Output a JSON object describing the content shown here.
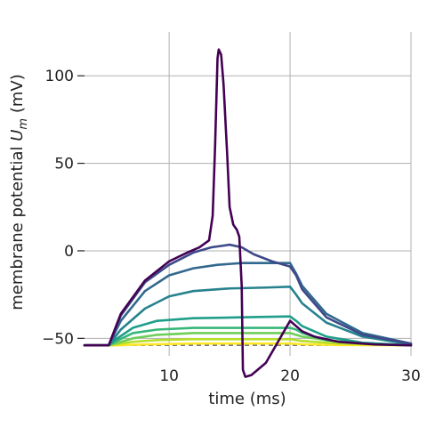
{
  "chart_data": {
    "type": "line",
    "xlabel": "time (ms)",
    "ylabel_main": "membrane potential ",
    "ylabel_symbol": "U",
    "ylabel_sub": "m",
    "ylabel_unit": " (mV)",
    "xlim": [
      3,
      30
    ],
    "ylim": [
      -60,
      125
    ],
    "xticks": [
      10,
      20,
      30
    ],
    "yticks": [
      -50,
      0,
      50,
      100
    ],
    "grid": true,
    "reference_line": {
      "y": -54,
      "color": "#777777",
      "style": "dashed"
    },
    "series": [
      {
        "color": "#fde725",
        "points": [
          [
            3,
            -54
          ],
          [
            5,
            -54
          ],
          [
            5.5,
            -54
          ],
          [
            8,
            -53.5
          ],
          [
            12,
            -53
          ],
          [
            16,
            -53
          ],
          [
            20,
            -53
          ],
          [
            21,
            -53.4
          ],
          [
            24,
            -53.8
          ],
          [
            30,
            -54
          ]
        ]
      },
      {
        "color": "#b5de2b",
        "points": [
          [
            3,
            -54
          ],
          [
            5,
            -54
          ],
          [
            5.5,
            -53.5
          ],
          [
            7,
            -52
          ],
          [
            9,
            -51
          ],
          [
            12,
            -50.5
          ],
          [
            16,
            -50.5
          ],
          [
            20,
            -50.5
          ],
          [
            21,
            -51.5
          ],
          [
            24,
            -53
          ],
          [
            30,
            -54
          ]
        ]
      },
      {
        "color": "#6ece58",
        "points": [
          [
            3,
            -54
          ],
          [
            5,
            -54
          ],
          [
            5.5,
            -53
          ],
          [
            7,
            -50
          ],
          [
            9,
            -48
          ],
          [
            12,
            -47
          ],
          [
            16,
            -47
          ],
          [
            20,
            -47
          ],
          [
            21,
            -49
          ],
          [
            24,
            -52
          ],
          [
            30,
            -54
          ]
        ]
      },
      {
        "color": "#35b779",
        "points": [
          [
            3,
            -54
          ],
          [
            5,
            -54
          ],
          [
            5.5,
            -52
          ],
          [
            7,
            -47
          ],
          [
            9,
            -45
          ],
          [
            12,
            -44
          ],
          [
            16,
            -44
          ],
          [
            20,
            -44
          ],
          [
            20.5,
            -45
          ],
          [
            21,
            -47
          ],
          [
            23,
            -51
          ],
          [
            26,
            -53
          ],
          [
            30,
            -54
          ]
        ]
      },
      {
        "color": "#1f9e89",
        "points": [
          [
            3,
            -54
          ],
          [
            5,
            -54
          ],
          [
            5.5,
            -51
          ],
          [
            7,
            -44
          ],
          [
            9,
            -40
          ],
          [
            12,
            -38.5
          ],
          [
            16,
            -38
          ],
          [
            20,
            -37.5
          ],
          [
            20.5,
            -40
          ],
          [
            21,
            -43
          ],
          [
            23,
            -49
          ],
          [
            26,
            -52.5
          ],
          [
            30,
            -54
          ]
        ]
      },
      {
        "color": "#26828e",
        "points": [
          [
            3,
            -54
          ],
          [
            5,
            -54
          ],
          [
            6,
            -45
          ],
          [
            8,
            -33
          ],
          [
            10,
            -26
          ],
          [
            12,
            -23
          ],
          [
            15,
            -21.5
          ],
          [
            18,
            -21
          ],
          [
            20,
            -20.5
          ],
          [
            20.5,
            -25
          ],
          [
            21,
            -30
          ],
          [
            23,
            -41
          ],
          [
            26,
            -49
          ],
          [
            30,
            -53.5
          ]
        ]
      },
      {
        "color": "#31688e",
        "points": [
          [
            3,
            -54
          ],
          [
            5,
            -54
          ],
          [
            6,
            -40
          ],
          [
            8,
            -23
          ],
          [
            10,
            -14
          ],
          [
            12,
            -10
          ],
          [
            14,
            -8
          ],
          [
            16,
            -7
          ],
          [
            18,
            -7
          ],
          [
            20,
            -7
          ],
          [
            20.5,
            -13
          ],
          [
            21,
            -20
          ],
          [
            23,
            -36
          ],
          [
            26,
            -47
          ],
          [
            30,
            -53
          ]
        ]
      },
      {
        "color": "#3e4989",
        "points": [
          [
            3,
            -54
          ],
          [
            5,
            -54
          ],
          [
            6,
            -37
          ],
          [
            8,
            -18
          ],
          [
            10,
            -8
          ],
          [
            12,
            -1
          ],
          [
            13.5,
            2
          ],
          [
            15,
            3.5
          ],
          [
            16,
            2
          ],
          [
            17,
            -2
          ],
          [
            18.5,
            -6
          ],
          [
            20,
            -9
          ],
          [
            20.5,
            -14
          ],
          [
            21,
            -22
          ],
          [
            23,
            -38
          ],
          [
            26,
            -48
          ],
          [
            30,
            -53
          ]
        ]
      },
      {
        "color": "#440154",
        "points": [
          [
            3,
            -54
          ],
          [
            5,
            -54
          ],
          [
            6,
            -36
          ],
          [
            8,
            -17
          ],
          [
            10,
            -6
          ],
          [
            11.5,
            -1
          ],
          [
            12.5,
            2
          ],
          [
            13.3,
            6
          ],
          [
            13.6,
            20
          ],
          [
            13.8,
            60
          ],
          [
            14,
            110
          ],
          [
            14.1,
            115
          ],
          [
            14.3,
            112
          ],
          [
            14.5,
            95
          ],
          [
            14.8,
            55
          ],
          [
            15,
            25
          ],
          [
            15.3,
            15
          ],
          [
            15.6,
            12
          ],
          [
            15.8,
            8
          ],
          [
            16,
            -20
          ],
          [
            16.1,
            -68
          ],
          [
            16.3,
            -72
          ],
          [
            16.8,
            -71
          ],
          [
            18,
            -64
          ],
          [
            20,
            -40
          ],
          [
            20.5,
            -43
          ],
          [
            21,
            -46
          ],
          [
            22,
            -49
          ],
          [
            24,
            -52
          ],
          [
            27,
            -53.5
          ],
          [
            30,
            -54
          ]
        ]
      }
    ]
  }
}
